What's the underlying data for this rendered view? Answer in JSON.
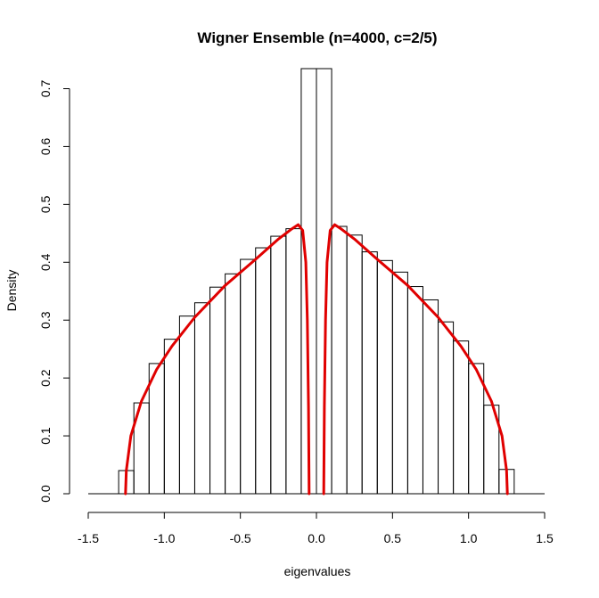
{
  "chart_data": {
    "type": "histogram",
    "title": "Wigner Ensemble (n=4000, c=2/5)",
    "xlabel": "eigenvalues",
    "ylabel": "Density",
    "xlim": [
      -1.5,
      1.5
    ],
    "ylim": [
      0,
      0.7
    ],
    "x_ticks": [
      -1.5,
      -1.0,
      -0.5,
      0.0,
      0.5,
      1.0,
      1.5
    ],
    "x_tick_labels": [
      "-1.5",
      "-1.0",
      "-0.5",
      "0.0",
      "0.5",
      "1.0",
      "1.5"
    ],
    "y_ticks": [
      0.0,
      0.1,
      0.2,
      0.3,
      0.4,
      0.5,
      0.6,
      0.7
    ],
    "y_tick_labels": [
      "0.0",
      "0.1",
      "0.2",
      "0.3",
      "0.4",
      "0.5",
      "0.6",
      "0.7"
    ],
    "grid": false,
    "legend": "none",
    "bin_width": 0.1,
    "bins": [
      {
        "x0": -1.3,
        "x1": -1.2,
        "density": 0.04
      },
      {
        "x0": -1.2,
        "x1": -1.1,
        "density": 0.157
      },
      {
        "x0": -1.1,
        "x1": -1.0,
        "density": 0.225
      },
      {
        "x0": -1.0,
        "x1": -0.9,
        "density": 0.267
      },
      {
        "x0": -0.9,
        "x1": -0.8,
        "density": 0.307
      },
      {
        "x0": -0.8,
        "x1": -0.7,
        "density": 0.33
      },
      {
        "x0": -0.7,
        "x1": -0.6,
        "density": 0.357
      },
      {
        "x0": -0.6,
        "x1": -0.5,
        "density": 0.38
      },
      {
        "x0": -0.5,
        "x1": -0.4,
        "density": 0.405
      },
      {
        "x0": -0.4,
        "x1": -0.3,
        "density": 0.425
      },
      {
        "x0": -0.3,
        "x1": -0.2,
        "density": 0.445
      },
      {
        "x0": -0.2,
        "x1": -0.1,
        "density": 0.458
      },
      {
        "x0": -0.1,
        "x1": 0.0,
        "density": 0.75
      },
      {
        "x0": 0.0,
        "x1": 0.1,
        "density": 0.75
      },
      {
        "x0": 0.1,
        "x1": 0.2,
        "density": 0.462
      },
      {
        "x0": 0.2,
        "x1": 0.3,
        "density": 0.447
      },
      {
        "x0": 0.3,
        "x1": 0.4,
        "density": 0.418
      },
      {
        "x0": 0.4,
        "x1": 0.5,
        "density": 0.403
      },
      {
        "x0": 0.5,
        "x1": 0.6,
        "density": 0.383
      },
      {
        "x0": 0.6,
        "x1": 0.7,
        "density": 0.358
      },
      {
        "x0": 0.7,
        "x1": 0.8,
        "density": 0.335
      },
      {
        "x0": 0.8,
        "x1": 0.9,
        "density": 0.297
      },
      {
        "x0": 0.9,
        "x1": 1.0,
        "density": 0.264
      },
      {
        "x0": 1.0,
        "x1": 1.1,
        "density": 0.225
      },
      {
        "x0": 1.1,
        "x1": 1.2,
        "density": 0.153
      },
      {
        "x0": 1.2,
        "x1": 1.3,
        "density": 0.042
      }
    ],
    "density_curve": {
      "color": "#e00000",
      "left_branch": [
        {
          "x": -1.255,
          "y": 0.0
        },
        {
          "x": -1.25,
          "y": 0.04
        },
        {
          "x": -1.22,
          "y": 0.1
        },
        {
          "x": -1.15,
          "y": 0.16
        },
        {
          "x": -1.05,
          "y": 0.215
        },
        {
          "x": -0.95,
          "y": 0.255
        },
        {
          "x": -0.8,
          "y": 0.305
        },
        {
          "x": -0.6,
          "y": 0.36
        },
        {
          "x": -0.4,
          "y": 0.405
        },
        {
          "x": -0.25,
          "y": 0.44
        },
        {
          "x": -0.16,
          "y": 0.458
        },
        {
          "x": -0.12,
          "y": 0.465
        },
        {
          "x": -0.09,
          "y": 0.455
        },
        {
          "x": -0.07,
          "y": 0.4
        },
        {
          "x": -0.06,
          "y": 0.3
        },
        {
          "x": -0.052,
          "y": 0.15
        },
        {
          "x": -0.048,
          "y": 0.0
        }
      ],
      "right_branch": [
        {
          "x": 0.048,
          "y": 0.0
        },
        {
          "x": 0.052,
          "y": 0.15
        },
        {
          "x": 0.06,
          "y": 0.3
        },
        {
          "x": 0.07,
          "y": 0.4
        },
        {
          "x": 0.09,
          "y": 0.455
        },
        {
          "x": 0.12,
          "y": 0.465
        },
        {
          "x": 0.16,
          "y": 0.458
        },
        {
          "x": 0.25,
          "y": 0.44
        },
        {
          "x": 0.4,
          "y": 0.405
        },
        {
          "x": 0.6,
          "y": 0.36
        },
        {
          "x": 0.8,
          "y": 0.305
        },
        {
          "x": 0.95,
          "y": 0.255
        },
        {
          "x": 1.05,
          "y": 0.215
        },
        {
          "x": 1.15,
          "y": 0.16
        },
        {
          "x": 1.22,
          "y": 0.1
        },
        {
          "x": 1.25,
          "y": 0.04
        },
        {
          "x": 1.255,
          "y": 0.0
        }
      ]
    }
  }
}
